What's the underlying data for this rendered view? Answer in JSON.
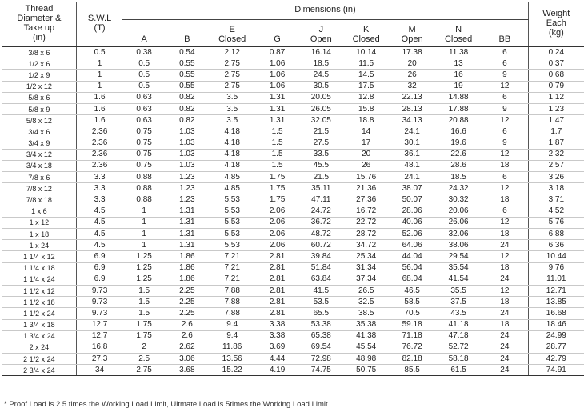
{
  "headers": {
    "thread_lines": [
      "Thread",
      "Diameter &",
      "Take up",
      "(in)"
    ],
    "swl_lines": [
      "S.W.L",
      "(T)"
    ],
    "dimensions_title": "Dimensions (in)",
    "weight_lines": [
      "Weight",
      "Each",
      "(kg)"
    ],
    "dimension_columns": [
      [
        "A"
      ],
      [
        "B"
      ],
      [
        "E",
        "Closed"
      ],
      [
        "G"
      ],
      [
        "J",
        "Open"
      ],
      [
        "K",
        "Closed"
      ],
      [
        "M",
        "Open"
      ],
      [
        "N",
        "Closed"
      ],
      [
        "BB"
      ]
    ]
  },
  "rows": [
    [
      "3/8 x 6",
      "0.5",
      "0.38",
      "0.54",
      "2.12",
      "0.87",
      "16.14",
      "10.14",
      "17.38",
      "11.38",
      "6",
      "0.24"
    ],
    [
      "1/2 x 6",
      "1",
      "0.5",
      "0.55",
      "2.75",
      "1.06",
      "18.5",
      "11.5",
      "20",
      "13",
      "6",
      "0.37"
    ],
    [
      "1/2 x 9",
      "1",
      "0.5",
      "0.55",
      "2.75",
      "1.06",
      "24.5",
      "14.5",
      "26",
      "16",
      "9",
      "0.68"
    ],
    [
      "1/2 x 12",
      "1",
      "0.5",
      "0.55",
      "2.75",
      "1.06",
      "30.5",
      "17.5",
      "32",
      "19",
      "12",
      "0.79"
    ],
    [
      "5/8 x 6",
      "1.6",
      "0.63",
      "0.82",
      "3.5",
      "1.31",
      "20.05",
      "12.8",
      "22.13",
      "14.88",
      "6",
      "1.12"
    ],
    [
      "5/8 x 9",
      "1.6",
      "0.63",
      "0.82",
      "3.5",
      "1.31",
      "26.05",
      "15.8",
      "28.13",
      "17.88",
      "9",
      "1.23"
    ],
    [
      "5/8 x 12",
      "1.6",
      "0.63",
      "0.82",
      "3.5",
      "1.31",
      "32.05",
      "18.8",
      "34.13",
      "20.88",
      "12",
      "1.47"
    ],
    [
      "3/4 x 6",
      "2.36",
      "0.75",
      "1.03",
      "4.18",
      "1.5",
      "21.5",
      "14",
      "24.1",
      "16.6",
      "6",
      "1.7"
    ],
    [
      "3/4 x 9",
      "2.36",
      "0.75",
      "1.03",
      "4.18",
      "1.5",
      "27.5",
      "17",
      "30.1",
      "19.6",
      "9",
      "1.87"
    ],
    [
      "3/4 x 12",
      "2.36",
      "0.75",
      "1.03",
      "4.18",
      "1.5",
      "33.5",
      "20",
      "36.1",
      "22.6",
      "12",
      "2.32"
    ],
    [
      "3/4 x 18",
      "2.36",
      "0.75",
      "1.03",
      "4.18",
      "1.5",
      "45.5",
      "26",
      "48.1",
      "28.6",
      "18",
      "2.57"
    ],
    [
      "7/8 x 6",
      "3.3",
      "0.88",
      "1.23",
      "4.85",
      "1.75",
      "21.5",
      "15.76",
      "24.1",
      "18.5",
      "6",
      "3.26"
    ],
    [
      "7/8 x 12",
      "3.3",
      "0.88",
      "1.23",
      "4.85",
      "1.75",
      "35.11",
      "21.36",
      "38.07",
      "24.32",
      "12",
      "3.18"
    ],
    [
      "7/8 x 18",
      "3.3",
      "0.88",
      "1.23",
      "5.53",
      "1.75",
      "47.11",
      "27.36",
      "50.07",
      "30.32",
      "18",
      "3.71"
    ],
    [
      "1 x 6",
      "4.5",
      "1",
      "1.31",
      "5.53",
      "2.06",
      "24.72",
      "16.72",
      "28.06",
      "20.06",
      "6",
      "4.52"
    ],
    [
      "1 x 12",
      "4.5",
      "1",
      "1.31",
      "5.53",
      "2.06",
      "36.72",
      "22.72",
      "40.06",
      "26.06",
      "12",
      "5.76"
    ],
    [
      "1 x 18",
      "4.5",
      "1",
      "1.31",
      "5.53",
      "2.06",
      "48.72",
      "28.72",
      "52.06",
      "32.06",
      "18",
      "6.88"
    ],
    [
      "1 x 24",
      "4.5",
      "1",
      "1.31",
      "5.53",
      "2.06",
      "60.72",
      "34.72",
      "64.06",
      "38.06",
      "24",
      "6.36"
    ],
    [
      "1 1/4 x 12",
      "6.9",
      "1.25",
      "1.86",
      "7.21",
      "2.81",
      "39.84",
      "25.34",
      "44.04",
      "29.54",
      "12",
      "10.44"
    ],
    [
      "1 1/4 x 18",
      "6.9",
      "1.25",
      "1.86",
      "7.21",
      "2.81",
      "51.84",
      "31.34",
      "56.04",
      "35.54",
      "18",
      "9.76"
    ],
    [
      "1 1/4 x 24",
      "6.9",
      "1.25",
      "1.86",
      "7.21",
      "2.81",
      "63.84",
      "37.34",
      "68.04",
      "41.54",
      "24",
      "11.01"
    ],
    [
      "1 1/2 x 12",
      "9.73",
      "1.5",
      "2.25",
      "7.88",
      "2.81",
      "41.5",
      "26.5",
      "46.5",
      "35.5",
      "12",
      "12.71"
    ],
    [
      "1 1/2 x 18",
      "9.73",
      "1.5",
      "2.25",
      "7.88",
      "2.81",
      "53.5",
      "32.5",
      "58.5",
      "37.5",
      "18",
      "13.85"
    ],
    [
      "1 1/2 x 24",
      "9.73",
      "1.5",
      "2.25",
      "7.88",
      "2.81",
      "65.5",
      "38.5",
      "70.5",
      "43.5",
      "24",
      "16.68"
    ],
    [
      "1 3/4 x 18",
      "12.7",
      "1.75",
      "2.6",
      "9.4",
      "3.38",
      "53.38",
      "35.38",
      "59.18",
      "41.18",
      "18",
      "18.46"
    ],
    [
      "1 3/4 x 24",
      "12.7",
      "1.75",
      "2.6",
      "9.4",
      "3.38",
      "65.38",
      "41.38",
      "71.18",
      "47.18",
      "24",
      "24.99"
    ],
    [
      "2 x 24",
      "16.8",
      "2",
      "2.62",
      "11.86",
      "3.69",
      "69.54",
      "45.54",
      "76.72",
      "52.72",
      "24",
      "28.77"
    ],
    [
      "2 1/2 x 24",
      "27.3",
      "2.5",
      "3.06",
      "13.56",
      "4.44",
      "72.98",
      "48.98",
      "82.18",
      "58.18",
      "24",
      "42.79"
    ],
    [
      "2 3/4 x 24",
      "34",
      "2.75",
      "3.68",
      "15.22",
      "4.19",
      "74.75",
      "50.75",
      "85.5",
      "61.5",
      "24",
      "74.91"
    ]
  ],
  "footnote": "* Proof Load is 2.5 times the Working Load Limit, Ultmate Load is 5times the Working Load Limit."
}
